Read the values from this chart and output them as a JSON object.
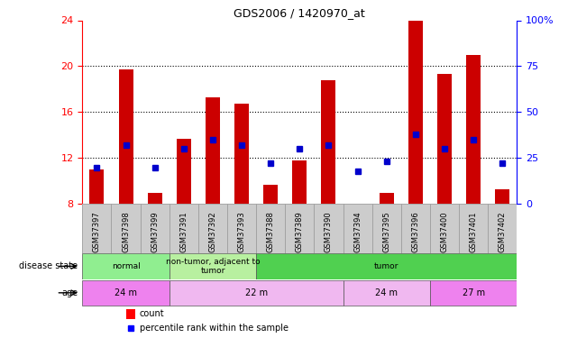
{
  "title": "GDS2006 / 1420970_at",
  "samples": [
    "GSM37397",
    "GSM37398",
    "GSM37399",
    "GSM37391",
    "GSM37392",
    "GSM37393",
    "GSM37388",
    "GSM37389",
    "GSM37390",
    "GSM37394",
    "GSM37395",
    "GSM37396",
    "GSM37400",
    "GSM37401",
    "GSM37402"
  ],
  "count_values": [
    11.0,
    19.7,
    9.0,
    13.7,
    17.3,
    16.7,
    9.7,
    11.8,
    18.8,
    7.8,
    9.0,
    24.0,
    19.3,
    21.0,
    9.3
  ],
  "percentile_pct": [
    20,
    32,
    20,
    30,
    35,
    32,
    22,
    30,
    32,
    18,
    23,
    38,
    30,
    35,
    22
  ],
  "y_min": 8,
  "y_max": 24,
  "y_ticks_left": [
    8,
    12,
    16,
    20,
    24
  ],
  "y_ticks_right_pct": [
    0,
    25,
    50,
    75,
    100
  ],
  "disease_state_groups": [
    {
      "label": "normal",
      "start": 0,
      "end": 3,
      "color": "#90ee90"
    },
    {
      "label": "non-tumor, adjacent to\ntumor",
      "start": 3,
      "end": 6,
      "color": "#b8f0a0"
    },
    {
      "label": "tumor",
      "start": 6,
      "end": 15,
      "color": "#50d050"
    }
  ],
  "age_groups": [
    {
      "label": "24 m",
      "start": 0,
      "end": 3,
      "color": "#ee82ee"
    },
    {
      "label": "22 m",
      "start": 3,
      "end": 9,
      "color": "#f0b8f0"
    },
    {
      "label": "24 m",
      "start": 9,
      "end": 12,
      "color": "#f0b8f0"
    },
    {
      "label": "27 m",
      "start": 12,
      "end": 15,
      "color": "#ee82ee"
    }
  ],
  "bar_color": "#cc0000",
  "dot_color": "#0000cc",
  "bar_bottom": 8,
  "background_color": "#ffffff",
  "label_bg_color": "#dddddd",
  "xtick_bg_color": "#cccccc"
}
